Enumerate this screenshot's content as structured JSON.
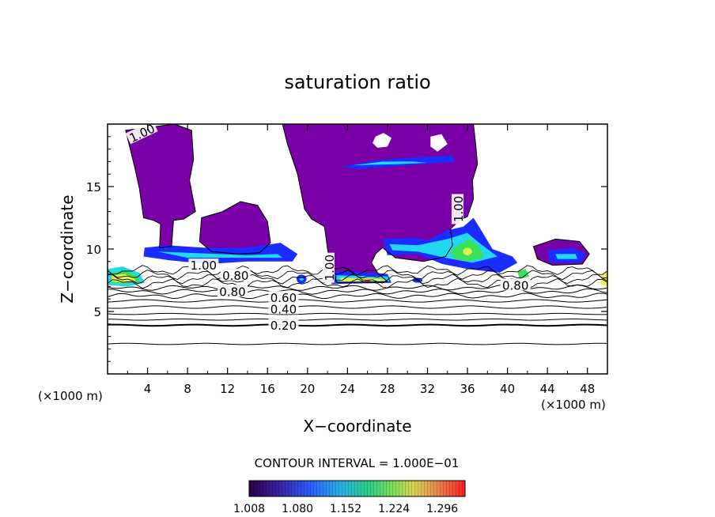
{
  "chart_data": {
    "type": "heatmap",
    "title": "saturation ratio",
    "xlabel": "X−coordinate",
    "ylabel": "Z−coordinate",
    "x_unit_label": "(×1000 m)",
    "x_unit_label_right": "(×1000 m)",
    "xlim": [
      0,
      50
    ],
    "ylim": [
      0,
      20
    ],
    "x_ticks": [
      4,
      8,
      12,
      16,
      20,
      24,
      28,
      32,
      36,
      40,
      44,
      48
    ],
    "y_ticks": [
      5,
      10,
      15
    ],
    "contour_interval_text": "CONTOUR INTERVAL = 1.000E−01",
    "contour_labels": [
      {
        "text": "1.00",
        "x": 3.5,
        "z": 19.2
      },
      {
        "text": "1.00",
        "x": 35.2,
        "z": 13.2
      },
      {
        "text": "1.00",
        "x": 22.3,
        "z": 8.5
      },
      {
        "text": "0.80",
        "x": 12.8,
        "z": 7.8
      },
      {
        "text": "0.80",
        "x": 12.5,
        "z": 6.5
      },
      {
        "text": "0.80",
        "x": 40.8,
        "z": 7.0
      },
      {
        "text": "1.00",
        "x": 9.6,
        "z": 8.6
      },
      {
        "text": "0.60",
        "x": 17.6,
        "z": 6.0
      },
      {
        "text": "0.40",
        "x": 17.6,
        "z": 5.1
      },
      {
        "text": "0.20",
        "x": 17.6,
        "z": 3.8
      }
    ],
    "colorbar": {
      "min": 1.008,
      "max": 1.33,
      "tick_labels": [
        "1.008",
        "1.080",
        "1.152",
        "1.224",
        "1.296"
      ],
      "tick_values": [
        1.008,
        1.08,
        1.152,
        1.224,
        1.296
      ]
    },
    "colors": {
      "purple": "#7a00a8",
      "blue": "#1a2cff",
      "cyan": "#23d7f0",
      "green": "#39e05a",
      "yellow": "#e8f04a",
      "red": "#ff2a1a"
    }
  }
}
